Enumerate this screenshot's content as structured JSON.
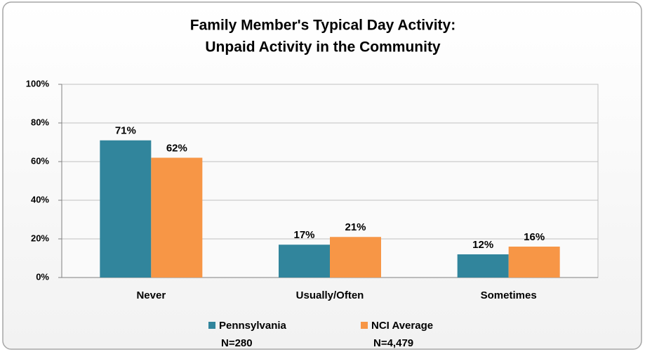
{
  "chart_data": {
    "type": "bar",
    "title": [
      "Family Member's Typical Day Activity:",
      "Unpaid Activity in the Community"
    ],
    "categories": [
      "Never",
      "Usually/Often",
      "Sometimes"
    ],
    "series": [
      {
        "name": "Pennsylvania",
        "n_label": "N=280",
        "color": "#31859c",
        "values": [
          71,
          17,
          12
        ],
        "value_labels": [
          "71%",
          "17%",
          "12%"
        ]
      },
      {
        "name": "NCI Average",
        "n_label": "N=4,479",
        "color": "#f79646",
        "values": [
          62,
          21,
          16
        ],
        "value_labels": [
          "62%",
          "21%",
          "16%"
        ]
      }
    ],
    "ylim": [
      0,
      100
    ],
    "yticks": [
      {
        "value": 0,
        "label": "0%"
      },
      {
        "value": 20,
        "label": "20%"
      },
      {
        "value": 40,
        "label": "40%"
      },
      {
        "value": 60,
        "label": "60%"
      },
      {
        "value": 80,
        "label": "80%"
      },
      {
        "value": 100,
        "label": "100%"
      }
    ],
    "grid": true,
    "legend": "bottom"
  }
}
